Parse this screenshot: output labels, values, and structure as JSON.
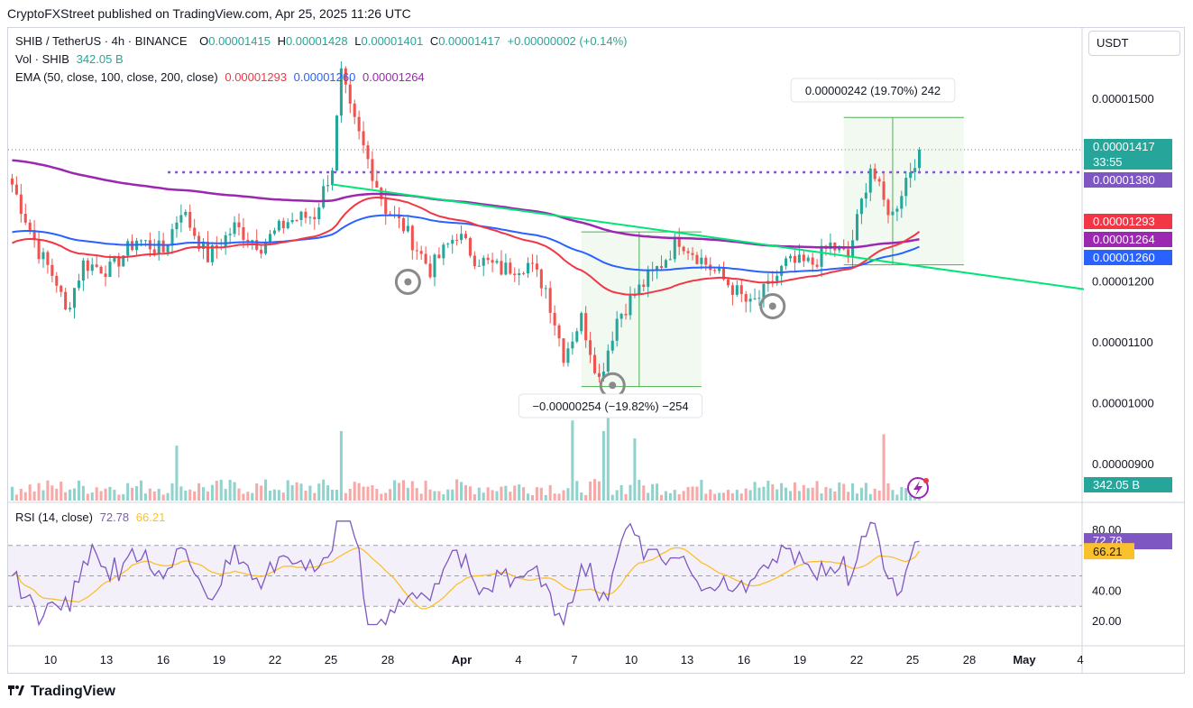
{
  "header": {
    "publisher": "CryptoFXStreet published on TradingView.com, Apr 25, 2025 11:26 UTC"
  },
  "legend": {
    "symbol": "SHIB / TetherUS · 4h · BINANCE",
    "o_label": "O",
    "o_value": "0.00001415",
    "h_label": "H",
    "h_value": "0.00001428",
    "l_label": "L",
    "l_value": "0.00001401",
    "c_label": "C",
    "c_value": "0.00001417",
    "change": "+0.00000002 (+0.14%)",
    "vol_label": "Vol · SHIB",
    "vol_value": "342.05 B",
    "ema_label": "EMA (50, close, 100, close, 200, close)",
    "ema50_value": "0.00001293",
    "ema100_value": "0.00001260",
    "ema200_value": "0.00001264",
    "rsi_label": "RSI (14, close)",
    "rsi_value": "72.78",
    "rsi_ma_value": "66.21"
  },
  "currency": "USDT",
  "footer": {
    "brand": "TradingView"
  },
  "colors": {
    "up": "#26a69a",
    "down": "#ef5350",
    "ema50": "#f23645",
    "ema100": "#2962ff",
    "ema200": "#9c27b0",
    "trendline": "#00e676",
    "resistance": "#7e57c2",
    "rsi": "#7e57c2",
    "rsi_ma": "#fbc02d",
    "price_badge": "#26a69a"
  },
  "icons": {
    "logo": "tradingview-logo-icon",
    "lightning": "lightning-icon"
  },
  "chart_data": {
    "type": "candlestick",
    "timeframe": "4h",
    "y_axis_ticks": [
      "0.00001500",
      "0.00001400",
      "0.00001300",
      "0.00001200",
      "0.00001100",
      "0.00001000",
      "0.00000900"
    ],
    "y_range": [
      8.4e-06,
      1.58e-05
    ],
    "x_axis_labels": [
      "10",
      "13",
      "16",
      "19",
      "22",
      "25",
      "28",
      "Apr",
      "4",
      "7",
      "10",
      "13",
      "16",
      "19",
      "22",
      "25",
      "28",
      "May",
      "4"
    ],
    "price_labels": {
      "last": "0.00001417",
      "countdown": "33:55",
      "resistance": "0.00001380",
      "ema50": "0.00001293",
      "ema200": "0.00001264",
      "ema100": "0.00001260",
      "volume": "342.05 B"
    },
    "resistance_level": 1.38e-05,
    "measure_up": {
      "from": 1.228e-05,
      "to": 1.47e-05,
      "label": "0.00000242 (19.70%) 242"
    },
    "measure_down": {
      "from": 1.282e-05,
      "to": 1.028e-05,
      "label": "−0.00000254 (−19.82%) −254"
    },
    "trendline": {
      "start": [
        "Mar 21",
        1.36e-05
      ],
      "end": [
        "Apr 27",
        1.188e-05
      ]
    },
    "rsi": {
      "levels": [
        70,
        50,
        30
      ],
      "ticks": [
        "80.00",
        "40.00",
        "20.00"
      ],
      "rsi_label": "72.78",
      "ma_label": "66.21",
      "ylim": [
        10,
        90
      ]
    },
    "anchors": [
      {
        "t": 0,
        "p": 1.36e-05
      },
      {
        "t": 6,
        "p": 1.25e-05
      },
      {
        "t": 10,
        "p": 1.2e-05
      },
      {
        "t": 12,
        "p": 1.15e-05
      },
      {
        "t": 16,
        "p": 1.23e-05
      },
      {
        "t": 22,
        "p": 1.22e-05
      },
      {
        "t": 28,
        "p": 1.27e-05
      },
      {
        "t": 34,
        "p": 1.25e-05
      },
      {
        "t": 38,
        "p": 1.32e-05
      },
      {
        "t": 44,
        "p": 1.24e-05
      },
      {
        "t": 50,
        "p": 1.29e-05
      },
      {
        "t": 56,
        "p": 1.26e-05
      },
      {
        "t": 62,
        "p": 1.3e-05
      },
      {
        "t": 68,
        "p": 1.31e-05
      },
      {
        "t": 72,
        "p": 1.39e-05
      },
      {
        "t": 74,
        "p": 1.54e-05
      },
      {
        "t": 76,
        "p": 1.48e-05
      },
      {
        "t": 80,
        "p": 1.4e-05
      },
      {
        "t": 84,
        "p": 1.32e-05
      },
      {
        "t": 88,
        "p": 1.29e-05
      },
      {
        "t": 94,
        "p": 1.22e-05
      },
      {
        "t": 100,
        "p": 1.28e-05
      },
      {
        "t": 104,
        "p": 1.24e-05
      },
      {
        "t": 110,
        "p": 1.22e-05
      },
      {
        "t": 116,
        "p": 1.23e-05
      },
      {
        "t": 120,
        "p": 1.19e-05
      },
      {
        "t": 124,
        "p": 1.08e-05
      },
      {
        "t": 128,
        "p": 1.14e-05
      },
      {
        "t": 132,
        "p": 1.04e-05
      },
      {
        "t": 136,
        "p": 1.14e-05
      },
      {
        "t": 140,
        "p": 1.18e-05
      },
      {
        "t": 146,
        "p": 1.23e-05
      },
      {
        "t": 150,
        "p": 1.27e-05
      },
      {
        "t": 156,
        "p": 1.23e-05
      },
      {
        "t": 162,
        "p": 1.19e-05
      },
      {
        "t": 166,
        "p": 1.16e-05
      },
      {
        "t": 170,
        "p": 1.19e-05
      },
      {
        "t": 174,
        "p": 1.23e-05
      },
      {
        "t": 180,
        "p": 1.23e-05
      },
      {
        "t": 184,
        "p": 1.26e-05
      },
      {
        "t": 188,
        "p": 1.24e-05
      },
      {
        "t": 190,
        "p": 1.3e-05
      },
      {
        "t": 193,
        "p": 1.39e-05
      },
      {
        "t": 196,
        "p": 1.33e-05
      },
      {
        "t": 198,
        "p": 1.31e-05
      },
      {
        "t": 201,
        "p": 1.37e-05
      },
      {
        "t": 204,
        "p": 1.417e-05
      }
    ]
  }
}
